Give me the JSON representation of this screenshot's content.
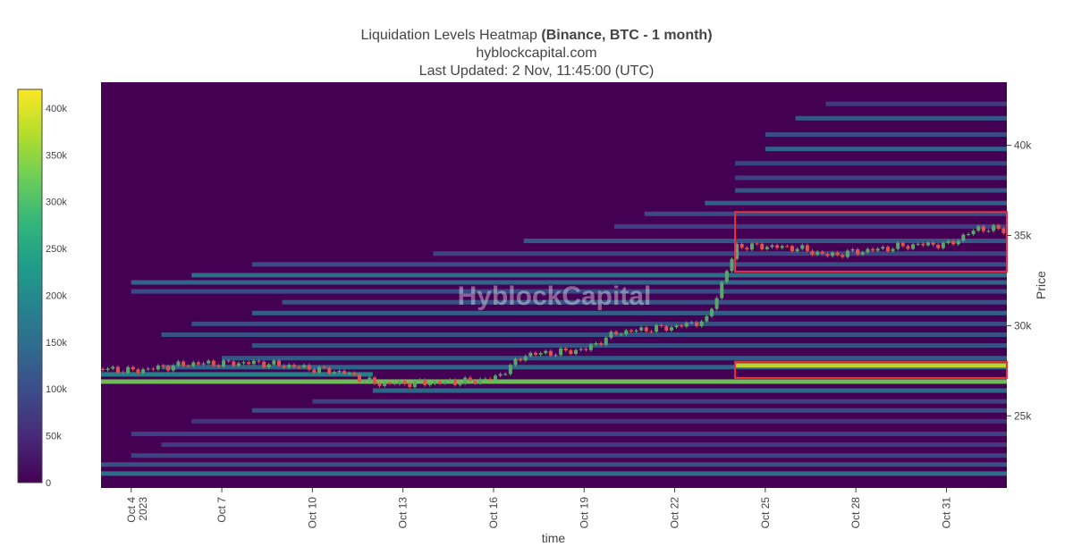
{
  "title": {
    "main": "Liquidation Levels Heatmap",
    "bold": "(Binance, BTC - 1 month)",
    "site": "hyblockcapital.com",
    "updated": "Last Updated: 2 Nov, 11:45:00 (UTC)"
  },
  "watermark": "HyblockCapital",
  "colors": {
    "background": "#440154",
    "candle_up": "#5aa66a",
    "candle_down": "#e0524d",
    "highlight_box": "#e8323c",
    "colorscale": [
      "#440154",
      "#482878",
      "#3e4989",
      "#31688e",
      "#26828e",
      "#1f9e89",
      "#35b779",
      "#6ece58",
      "#b5de2b",
      "#fde725"
    ]
  },
  "chart_data": {
    "type": "heatmap",
    "xlabel": "time",
    "ylabel": "Price",
    "x_range": [
      "2023-10-03",
      "2023-11-02"
    ],
    "y_range": [
      21000,
      43500
    ],
    "x_ticks": [
      {
        "date": "2023-10-04",
        "label": "Oct 4",
        "sub": "2023"
      },
      {
        "date": "2023-10-07",
        "label": "Oct 7"
      },
      {
        "date": "2023-10-10",
        "label": "Oct 10"
      },
      {
        "date": "2023-10-13",
        "label": "Oct 13"
      },
      {
        "date": "2023-10-16",
        "label": "Oct 16"
      },
      {
        "date": "2023-10-19",
        "label": "Oct 19"
      },
      {
        "date": "2023-10-22",
        "label": "Oct 22"
      },
      {
        "date": "2023-10-25",
        "label": "Oct 25"
      },
      {
        "date": "2023-10-28",
        "label": "Oct 28"
      },
      {
        "date": "2023-10-31",
        "label": "Oct 31"
      }
    ],
    "y_ticks": [
      {
        "value": 25000,
        "label": "25k"
      },
      {
        "value": 30000,
        "label": "30k"
      },
      {
        "value": 35000,
        "label": "35k"
      },
      {
        "value": 40000,
        "label": "40k"
      }
    ],
    "colorbar": {
      "range": [
        0,
        420000
      ],
      "ticks": [
        {
          "value": 0,
          "label": "0"
        },
        {
          "value": 50000,
          "label": "50k"
        },
        {
          "value": 100000,
          "label": "100k"
        },
        {
          "value": 150000,
          "label": "150k"
        },
        {
          "value": 200000,
          "label": "200k"
        },
        {
          "value": 250000,
          "label": "250k"
        },
        {
          "value": 300000,
          "label": "300k"
        },
        {
          "value": 350000,
          "label": "350k"
        },
        {
          "value": 400000,
          "label": "400k"
        }
      ]
    },
    "liquidation_bands": [
      {
        "price": 21800,
        "start": "2023-10-03",
        "end": "2023-11-02",
        "value": 170000
      },
      {
        "price": 22300,
        "start": "2023-10-03",
        "end": "2023-11-02",
        "value": 120000
      },
      {
        "price": 22800,
        "start": "2023-10-04",
        "end": "2023-11-02",
        "value": 100000
      },
      {
        "price": 23400,
        "start": "2023-10-05",
        "end": "2023-11-02",
        "value": 80000
      },
      {
        "price": 24000,
        "start": "2023-10-04",
        "end": "2023-11-02",
        "value": 90000
      },
      {
        "price": 24700,
        "start": "2023-10-06",
        "end": "2023-11-02",
        "value": 70000
      },
      {
        "price": 25300,
        "start": "2023-10-08",
        "end": "2023-11-02",
        "value": 110000
      },
      {
        "price": 25800,
        "start": "2023-10-10",
        "end": "2023-11-02",
        "value": 90000
      },
      {
        "price": 26400,
        "start": "2023-10-12",
        "end": "2023-11-02",
        "value": 160000
      },
      {
        "price": 26900,
        "start": "2023-10-03",
        "end": "2023-11-02",
        "value": 330000
      },
      {
        "price": 27300,
        "start": "2023-10-03",
        "end": "2023-10-12",
        "value": 200000
      },
      {
        "price": 27700,
        "start": "2023-10-05",
        "end": "2023-11-02",
        "value": 150000
      },
      {
        "price": 27800,
        "start": "2023-10-24",
        "end": "2023-11-02",
        "value": 390000
      },
      {
        "price": 28200,
        "start": "2023-10-07",
        "end": "2023-11-02",
        "value": 130000
      },
      {
        "price": 28900,
        "start": "2023-10-08",
        "end": "2023-11-02",
        "value": 120000
      },
      {
        "price": 29500,
        "start": "2023-10-05",
        "end": "2023-11-02",
        "value": 120000
      },
      {
        "price": 30100,
        "start": "2023-10-06",
        "end": "2023-11-02",
        "value": 110000
      },
      {
        "price": 30700,
        "start": "2023-10-08",
        "end": "2023-11-02",
        "value": 140000
      },
      {
        "price": 31300,
        "start": "2023-10-09",
        "end": "2023-11-02",
        "value": 120000
      },
      {
        "price": 31900,
        "start": "2023-10-04",
        "end": "2023-11-02",
        "value": 110000
      },
      {
        "price": 32400,
        "start": "2023-10-04",
        "end": "2023-11-02",
        "value": 150000
      },
      {
        "price": 32800,
        "start": "2023-10-06",
        "end": "2023-11-02",
        "value": 170000
      },
      {
        "price": 33400,
        "start": "2023-10-08",
        "end": "2023-11-02",
        "value": 110000
      },
      {
        "price": 34000,
        "start": "2023-10-14",
        "end": "2023-11-02",
        "value": 100000
      },
      {
        "price": 34700,
        "start": "2023-10-17",
        "end": "2023-11-02",
        "value": 130000
      },
      {
        "price": 35500,
        "start": "2023-10-20",
        "end": "2023-11-02",
        "value": 90000
      },
      {
        "price": 36200,
        "start": "2023-10-21",
        "end": "2023-11-02",
        "value": 110000
      },
      {
        "price": 36800,
        "start": "2023-10-23",
        "end": "2023-11-02",
        "value": 140000
      },
      {
        "price": 37500,
        "start": "2023-10-24",
        "end": "2023-11-02",
        "value": 130000
      },
      {
        "price": 38200,
        "start": "2023-10-24",
        "end": "2023-11-02",
        "value": 90000
      },
      {
        "price": 39000,
        "start": "2023-10-24",
        "end": "2023-11-02",
        "value": 100000
      },
      {
        "price": 39800,
        "start": "2023-10-25",
        "end": "2023-11-02",
        "value": 150000
      },
      {
        "price": 40600,
        "start": "2023-10-25",
        "end": "2023-11-02",
        "value": 110000
      },
      {
        "price": 41500,
        "start": "2023-10-26",
        "end": "2023-11-02",
        "value": 130000
      },
      {
        "price": 42300,
        "start": "2023-10-27",
        "end": "2023-11-02",
        "value": 80000
      }
    ],
    "price_path": [
      [
        "2023-10-03",
        27600
      ],
      [
        "2023-10-04",
        27500
      ],
      [
        "2023-10-05",
        27700
      ],
      [
        "2023-10-06",
        27900
      ],
      [
        "2023-10-07",
        27900
      ],
      [
        "2023-10-08",
        27950
      ],
      [
        "2023-10-09",
        27800
      ],
      [
        "2023-10-10",
        27600
      ],
      [
        "2023-10-11",
        27400
      ],
      [
        "2023-10-12",
        26800
      ],
      [
        "2023-10-13",
        26800
      ],
      [
        "2023-10-14",
        26850
      ],
      [
        "2023-10-15",
        26900
      ],
      [
        "2023-10-16",
        27100
      ],
      [
        "2023-10-17",
        28400
      ],
      [
        "2023-10-18",
        28500
      ],
      [
        "2023-10-19",
        28700
      ],
      [
        "2023-10-20",
        29600
      ],
      [
        "2023-10-21",
        29800
      ],
      [
        "2023-10-22",
        29950
      ],
      [
        "2023-10-23",
        30300
      ],
      [
        "2023-10-24",
        34400
      ],
      [
        "2023-10-25",
        34400
      ],
      [
        "2023-10-26",
        34300
      ],
      [
        "2023-10-27",
        33900
      ],
      [
        "2023-10-28",
        34100
      ],
      [
        "2023-10-29",
        34300
      ],
      [
        "2023-10-30",
        34500
      ],
      [
        "2023-10-31",
        34500
      ],
      [
        "2023-11-01",
        35400
      ],
      [
        "2023-11-02",
        35300
      ]
    ],
    "highlight_boxes": [
      {
        "start": "2023-10-24",
        "end": "2023-11-02",
        "low": 33000,
        "high": 36300
      },
      {
        "start": "2023-10-24",
        "end": "2023-11-02",
        "low": 27100,
        "high": 28000
      }
    ]
  }
}
